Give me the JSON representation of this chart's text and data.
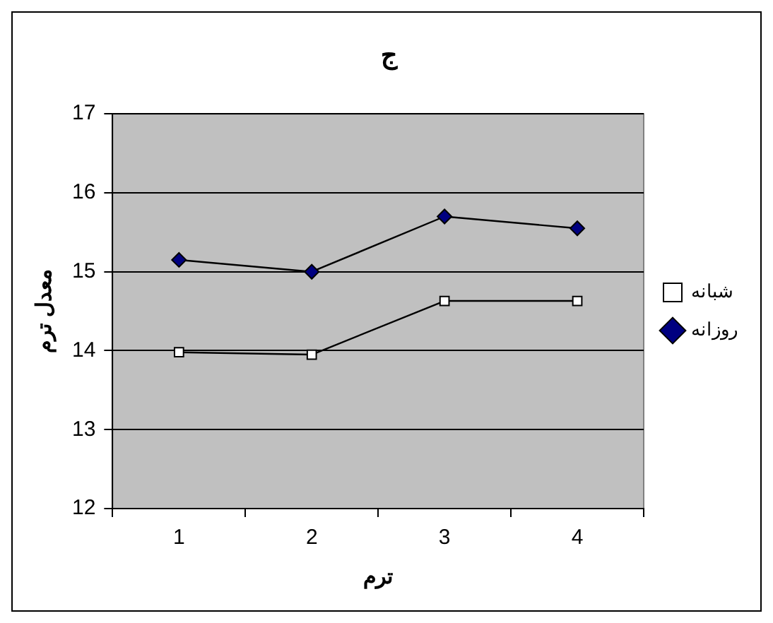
{
  "chart_data": {
    "type": "line",
    "title": "ج",
    "xlabel": "ترم",
    "ylabel": "معدل ترم",
    "categories": [
      "1",
      "2",
      "3",
      "4"
    ],
    "series": [
      {
        "name": "شبانه",
        "color": "#ffffff",
        "marker": "square",
        "values": [
          13.98,
          13.95,
          14.63,
          14.63
        ]
      },
      {
        "name": "روزانه",
        "color": "#000080",
        "marker": "diamond",
        "values": [
          15.15,
          15.0,
          15.7,
          15.55
        ]
      }
    ],
    "ylim": [
      12,
      17
    ],
    "yticks": [
      12,
      13,
      14,
      15,
      16,
      17
    ],
    "grid": "y",
    "legend": "right"
  }
}
